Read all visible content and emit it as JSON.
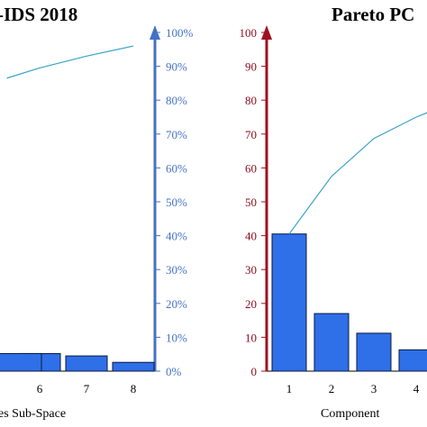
{
  "colors": {
    "bar_fill": "#2f6fe8",
    "bar_stroke": "#0a1a40",
    "cumulative_line": "#3aa3c8",
    "left_axis": "#4472c4",
    "right_axis": "#a0111f",
    "axis_line": "#000000"
  },
  "chart_data": [
    {
      "type": "bar",
      "title": "-IDS 2018",
      "xlabel": "es Sub-Space",
      "categories": [
        "6",
        "7",
        "8"
      ],
      "values": [
        5.2,
        4.5,
        2.6
      ],
      "ylabel_right": "",
      "y_ticks": [
        "0%",
        "10%",
        "20%",
        "30%",
        "40%",
        "50%",
        "60%",
        "70%",
        "80%",
        "90%",
        "100%"
      ],
      "ylim": [
        0,
        100
      ],
      "cumulative": {
        "x": [
          5.3,
          6,
          7,
          8
        ],
        "values": [
          86.5,
          89.5,
          93,
          96
        ]
      },
      "grid": false
    },
    {
      "type": "bar",
      "title": "Pareto PC",
      "xlabel": "Component",
      "categories": [
        "1",
        "2",
        "3",
        "4"
      ],
      "values": [
        40.5,
        17,
        11.2,
        6.3
      ],
      "y_ticks": [
        "0",
        "10",
        "20",
        "30",
        "40",
        "50",
        "60",
        "70",
        "80",
        "90",
        "100"
      ],
      "ylim": [
        0,
        100
      ],
      "cumulative": {
        "x": [
          1,
          2,
          3,
          4,
          4.3
        ],
        "values": [
          40.5,
          57.5,
          68.7,
          75,
          76.5
        ]
      },
      "grid": false
    }
  ]
}
